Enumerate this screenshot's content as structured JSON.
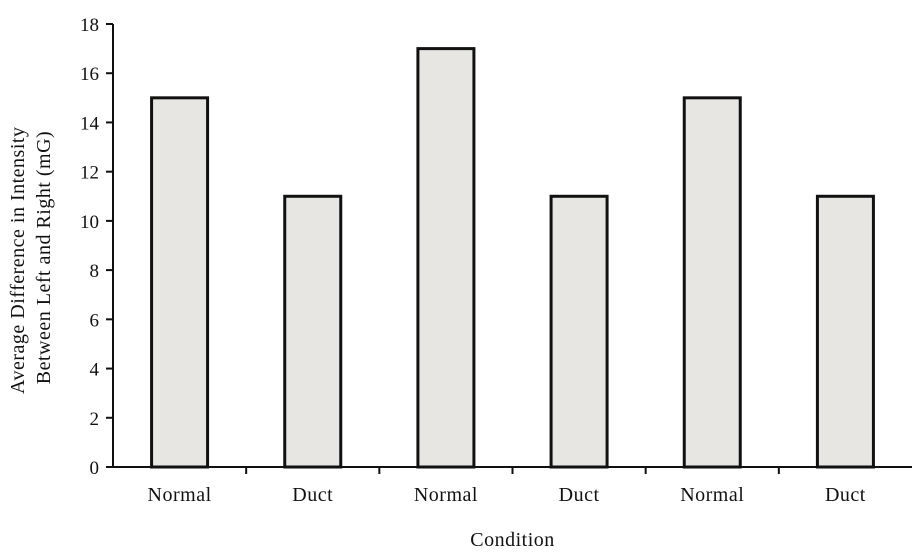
{
  "chart_data": {
    "type": "bar",
    "categories": [
      "Normal",
      "Duct",
      "Normal",
      "Duct",
      "Normal",
      "Duct"
    ],
    "values": [
      15,
      11,
      17,
      11,
      15,
      11
    ],
    "title": "",
    "xlabel": "Condition",
    "ylabel_lines": [
      "Average Difference in Intensity",
      "Between Left and Right (mG)"
    ],
    "ylim": [
      0,
      18
    ],
    "yticks": [
      0,
      2,
      4,
      6,
      8,
      10,
      12,
      14,
      16,
      18
    ],
    "grid": false,
    "legend": "none",
    "bar_color": "#e8e6e3",
    "bar_stroke": "#111111"
  }
}
